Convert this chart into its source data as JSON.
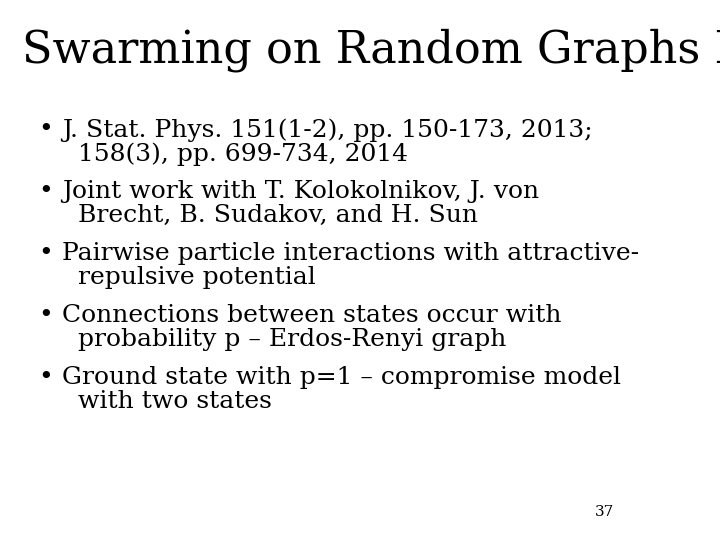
{
  "title": "Swarming on Random Graphs I & II",
  "title_fontsize": 32,
  "title_font": "serif",
  "background_color": "#ffffff",
  "text_color": "#000000",
  "bullet_lines": [
    [
      "J. Stat. Phys. 151(1-2), pp. 150-173, 2013;",
      "158(3), pp. 699-734, 2014"
    ],
    [
      "Joint work with T. Kolokolnikov, J. von",
      "Brecht, B. Sudakov, and H. Sun"
    ],
    [
      "Pairwise particle interactions with attractive-",
      "repulsive potential"
    ],
    [
      "Connections between states occur with",
      "probability p – Erdos-Renyi graph"
    ],
    [
      "Ground state with p=1 – compromise model",
      "with two states"
    ]
  ],
  "bullet_fontsize": 18,
  "bullet_font": "serif",
  "bullet_char": "•",
  "page_number": "37",
  "page_number_fontsize": 11
}
